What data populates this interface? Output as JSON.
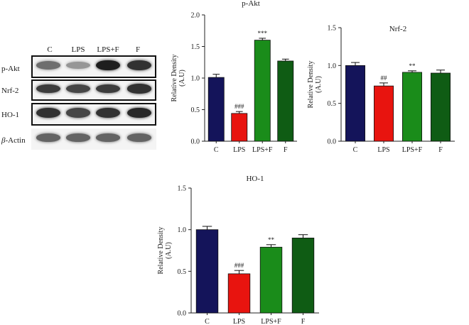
{
  "blot": {
    "lanes": [
      "C",
      "LPS",
      "LPS+F",
      "F"
    ],
    "rows": [
      {
        "label": "p-Akt",
        "intensity": [
          0.55,
          0.35,
          0.95,
          0.85
        ]
      },
      {
        "label": "Nrf-2",
        "intensity": [
          0.8,
          0.75,
          0.8,
          0.85
        ]
      },
      {
        "label": "HO-1",
        "intensity": [
          0.85,
          0.75,
          0.85,
          0.9
        ]
      },
      {
        "label_prefix": "β",
        "label": "-Actin",
        "intensity": [
          0.6,
          0.6,
          0.6,
          0.6
        ]
      }
    ]
  },
  "colors": {
    "C": "#14145a",
    "LPS": "#e8140f",
    "LPS+F": "#1a8c1a",
    "F": "#0f5c14"
  },
  "chart_data": [
    {
      "type": "bar",
      "title": "p-Akt",
      "categories": [
        "C",
        "LPS",
        "LPS+F",
        "F"
      ],
      "values": [
        1.01,
        0.44,
        1.6,
        1.27
      ],
      "errors": [
        0.05,
        0.03,
        0.03,
        0.03
      ],
      "annotations": [
        "",
        "###",
        "***",
        ""
      ],
      "ylabel": "Relative Density",
      "ylabel2": "(A.U)",
      "ylim": [
        0,
        2.0
      ],
      "yticks": [
        "0.0",
        "0.5",
        "1.0",
        "1.5",
        "2.0"
      ],
      "ytick_values": [
        0,
        0.5,
        1.0,
        1.5,
        2.0
      ]
    },
    {
      "type": "bar",
      "title": "Nrf-2",
      "categories": [
        "C",
        "LPS",
        "LPS+F",
        "F"
      ],
      "values": [
        1.0,
        0.73,
        0.91,
        0.9
      ],
      "errors": [
        0.04,
        0.04,
        0.02,
        0.04
      ],
      "annotations": [
        "",
        "##",
        "**",
        ""
      ],
      "ylabel": "Relative Density",
      "ylabel2": "(A.U)",
      "ylim": [
        0,
        1.5
      ],
      "yticks": [
        "0.0",
        "0.5",
        "1.0",
        "1.5"
      ],
      "ytick_values": [
        0,
        0.5,
        1.0,
        1.5
      ]
    },
    {
      "type": "bar",
      "title": "HO-1",
      "categories": [
        "C",
        "LPS",
        "LPS+F",
        "F"
      ],
      "values": [
        1.0,
        0.47,
        0.79,
        0.9
      ],
      "errors": [
        0.04,
        0.04,
        0.03,
        0.04
      ],
      "annotations": [
        "",
        "###",
        "**",
        ""
      ],
      "ylabel": "Relative Density",
      "ylabel2": "(A.U)",
      "ylim": [
        0,
        1.5
      ],
      "yticks": [
        "0.0",
        "0.5",
        "1.0",
        "1.5"
      ],
      "ytick_values": [
        0,
        0.5,
        1.0,
        1.5
      ]
    }
  ]
}
